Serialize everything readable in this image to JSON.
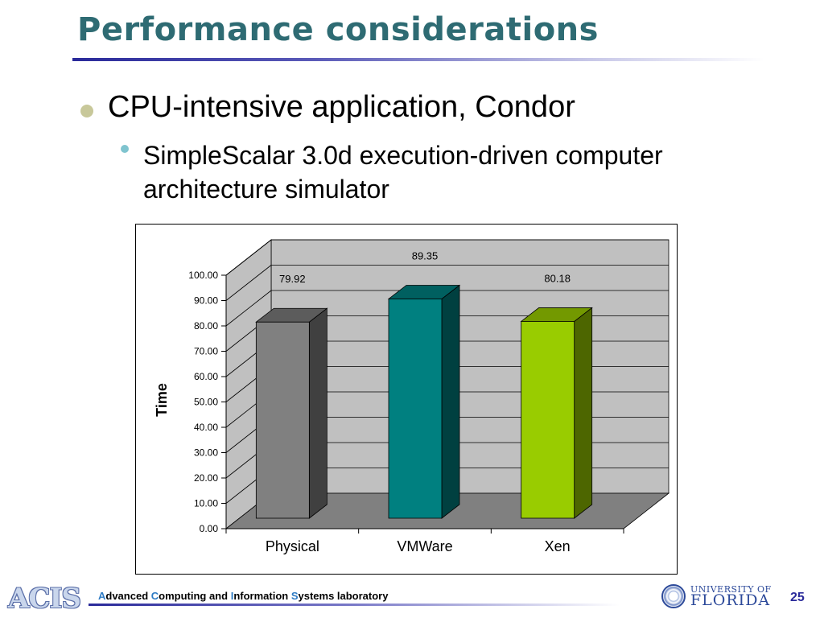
{
  "slide": {
    "title": "Performance considerations",
    "bullet_1": "CPU-intensive application, Condor",
    "bullet_2": "SimpleScalar 3.0d execution-driven computer architecture simulator",
    "page_number": "25"
  },
  "footer": {
    "logo_text": "ACIS",
    "lab_parts": [
      {
        "text": "A",
        "highlight": true
      },
      {
        "text": "dvanced ",
        "highlight": false
      },
      {
        "text": "C",
        "highlight": true
      },
      {
        "text": "omputing and ",
        "highlight": false
      },
      {
        "text": "I",
        "highlight": true
      },
      {
        "text": "nformation ",
        "highlight": false
      },
      {
        "text": "S",
        "highlight": true
      },
      {
        "text": "ystems laboratory",
        "highlight": false
      }
    ],
    "university_line1": "UNIVERSITY OF",
    "university_line2": "FLORIDA"
  },
  "chart_data": {
    "type": "bar",
    "title": "",
    "xlabel": "",
    "ylabel": "Time",
    "categories": [
      "Physical",
      "VMWare",
      "Xen"
    ],
    "values": [
      79.92,
      89.35,
      80.18
    ],
    "data_labels": [
      "79.92",
      "89.35",
      "80.18"
    ],
    "ylim": [
      0,
      100
    ],
    "yticks": [
      "0.00",
      "10.00",
      "20.00",
      "30.00",
      "40.00",
      "50.00",
      "60.00",
      "70.00",
      "80.00",
      "90.00",
      "100.00"
    ],
    "grid": true,
    "legend": "none",
    "colors": [
      {
        "front": "#808080",
        "side": "#404040",
        "top": "#5c5c5c"
      },
      {
        "front": "#008080",
        "side": "#004040",
        "top": "#006060"
      },
      {
        "front": "#99cc00",
        "side": "#4d6600",
        "top": "#739900"
      }
    ],
    "wall_color": "#c0c0c0",
    "floor_color": "#808080"
  }
}
